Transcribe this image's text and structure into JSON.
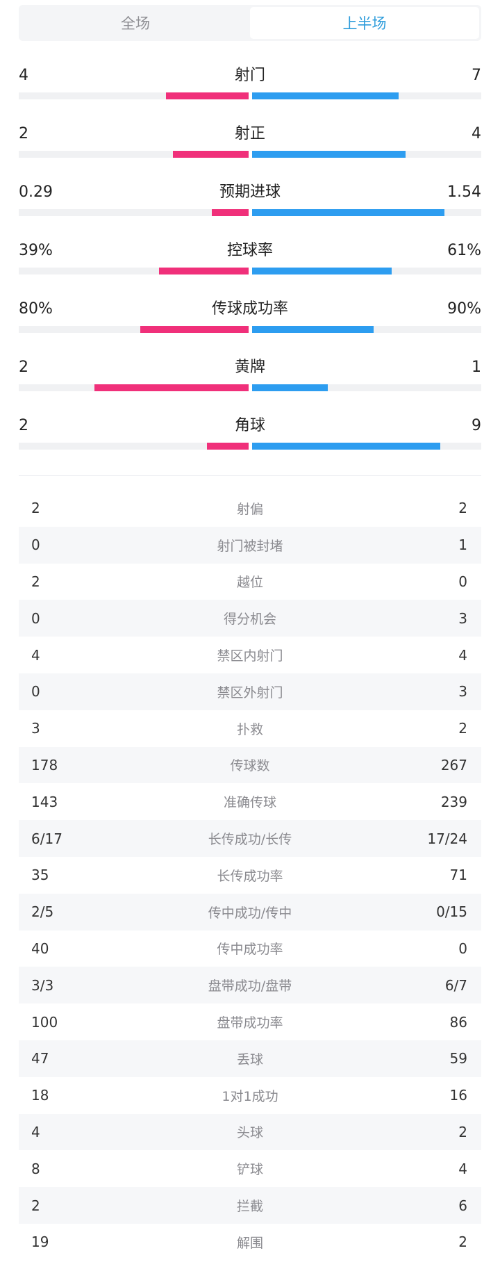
{
  "tabs": [
    {
      "label": "全场",
      "active": false
    },
    {
      "label": "上半场",
      "active": true
    }
  ],
  "colors": {
    "home": "#f0307a",
    "away": "#2d9df0",
    "active_tab": "#2d9cdb"
  },
  "bar_stats": [
    {
      "name": "射门",
      "left": "4",
      "right": "7",
      "left_ratio": 0.36,
      "right_ratio": 0.64
    },
    {
      "name": "射正",
      "left": "2",
      "right": "4",
      "left_ratio": 0.33,
      "right_ratio": 0.67
    },
    {
      "name": "预期进球",
      "left": "0.29",
      "right": "1.54",
      "left_ratio": 0.16,
      "right_ratio": 0.84
    },
    {
      "name": "控球率",
      "left": "39%",
      "right": "61%",
      "left_ratio": 0.39,
      "right_ratio": 0.61
    },
    {
      "name": "传球成功率",
      "left": "80%",
      "right": "90%",
      "left_ratio": 0.47,
      "right_ratio": 0.53
    },
    {
      "name": "黄牌",
      "left": "2",
      "right": "1",
      "left_ratio": 0.67,
      "right_ratio": 0.33
    },
    {
      "name": "角球",
      "left": "2",
      "right": "9",
      "left_ratio": 0.18,
      "right_ratio": 0.82
    }
  ],
  "table_stats": [
    {
      "name": "射偏",
      "left": "2",
      "right": "2"
    },
    {
      "name": "射门被封堵",
      "left": "0",
      "right": "1"
    },
    {
      "name": "越位",
      "left": "2",
      "right": "0"
    },
    {
      "name": "得分机会",
      "left": "0",
      "right": "3"
    },
    {
      "name": "禁区内射门",
      "left": "4",
      "right": "4"
    },
    {
      "name": "禁区外射门",
      "left": "0",
      "right": "3"
    },
    {
      "name": "扑救",
      "left": "3",
      "right": "2"
    },
    {
      "name": "传球数",
      "left": "178",
      "right": "267"
    },
    {
      "name": "准确传球",
      "left": "143",
      "right": "239"
    },
    {
      "name": "长传成功/长传",
      "left": "6/17",
      "right": "17/24"
    },
    {
      "name": "长传成功率",
      "left": "35",
      "right": "71"
    },
    {
      "name": "传中成功/传中",
      "left": "2/5",
      "right": "0/15"
    },
    {
      "name": "传中成功率",
      "left": "40",
      "right": "0"
    },
    {
      "name": "盘带成功/盘带",
      "left": "3/3",
      "right": "6/7"
    },
    {
      "name": "盘带成功率",
      "left": "100",
      "right": "86"
    },
    {
      "name": "丢球",
      "left": "47",
      "right": "59"
    },
    {
      "name": "1对1成功",
      "left": "18",
      "right": "16"
    },
    {
      "name": "头球",
      "left": "4",
      "right": "2"
    },
    {
      "name": "铲球",
      "left": "8",
      "right": "4"
    },
    {
      "name": "拦截",
      "left": "2",
      "right": "6"
    },
    {
      "name": "解围",
      "left": "19",
      "right": "2"
    }
  ]
}
